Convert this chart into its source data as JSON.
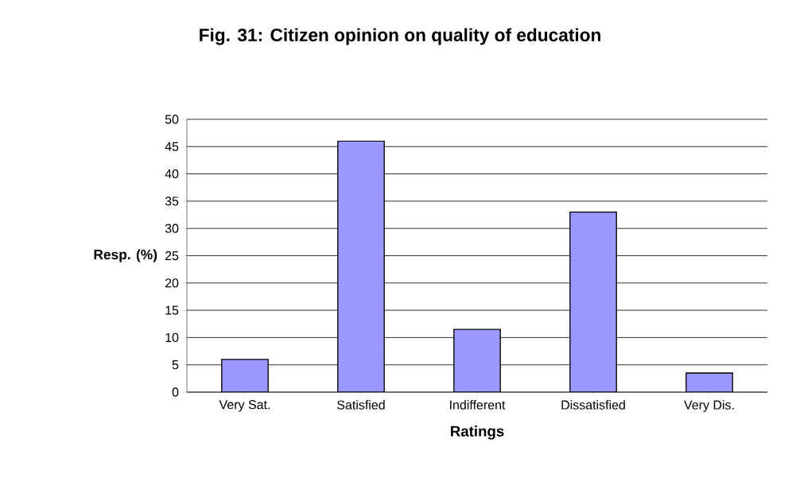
{
  "chart_data": {
    "type": "bar",
    "title": "Fig. 31: Citizen opinion on quality of education",
    "xlabel": "Ratings",
    "ylabel": "Resp. (%)",
    "categories": [
      "Very Sat.",
      "Satisfied",
      "Indifferent",
      "Dissatisfied",
      "Very Dis."
    ],
    "values": [
      6,
      46,
      11.5,
      33,
      3.5
    ],
    "color": "#9999ff",
    "ylim": [
      0,
      50
    ],
    "yticks": [
      0,
      5,
      10,
      15,
      20,
      25,
      30,
      35,
      40,
      45,
      50
    ],
    "grid": "y"
  }
}
